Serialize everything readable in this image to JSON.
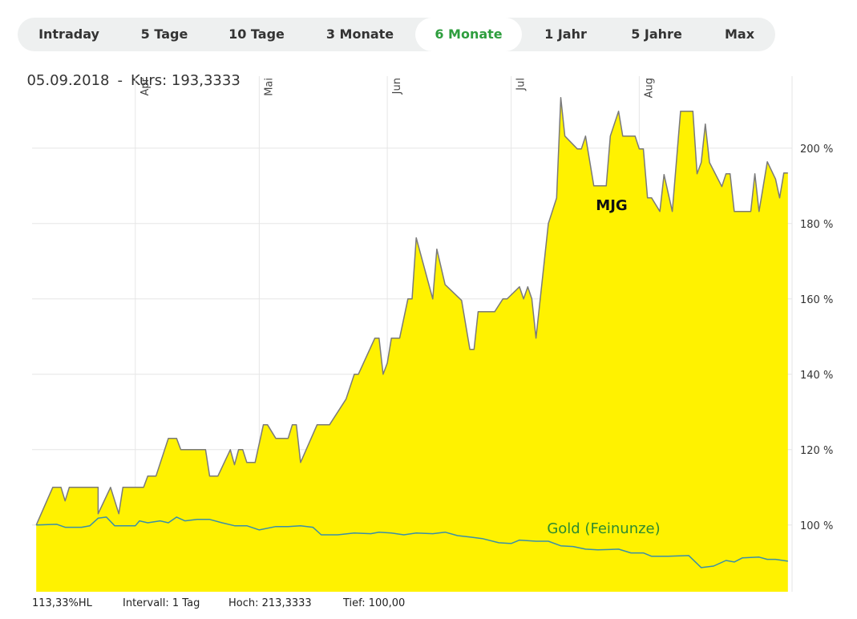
{
  "tabs": {
    "items": [
      "Intraday",
      "5 Tage",
      "10 Tage",
      "3 Monate",
      "6 Monate",
      "1 Jahr",
      "5 Jahre",
      "Max"
    ],
    "active": 4
  },
  "info": {
    "date": "05.09.2018",
    "separator": "-",
    "price": "Kurs: 193,3333"
  },
  "footer": [
    "113,33%HL",
    "Intervall: 1 Tag",
    "Hoch: 213,3333",
    "Tief: 100,00"
  ],
  "chart_data": {
    "type": "area",
    "xlim": [
      66,
      250
    ],
    "xticks": [
      {
        "value": 91,
        "label": "Apr"
      },
      {
        "value": 121,
        "label": "Mai"
      },
      {
        "value": 152,
        "label": "Jun"
      },
      {
        "value": 182,
        "label": "Jul"
      },
      {
        "value": 213,
        "label": "Aug"
      }
    ],
    "ylim": [
      82.3,
      219.1
    ],
    "yticks": [
      {
        "value": 100,
        "label": "100 %"
      },
      {
        "value": 120,
        "label": "120 %"
      },
      {
        "value": 140,
        "label": "140 %"
      },
      {
        "value": 160,
        "label": "160 %"
      },
      {
        "value": 180,
        "label": "180 %"
      },
      {
        "value": 200,
        "label": "200 %"
      }
    ],
    "grid": true,
    "series": [
      {
        "name": "MJG",
        "color": "#fff200",
        "line_color": "#7a7a7a",
        "label_color": "#111111",
        "filled": true,
        "x": [
          67,
          71,
          73,
          74,
          75,
          82,
          82,
          85,
          87,
          88,
          93,
          94,
          96,
          99,
          101,
          102,
          108,
          109,
          111,
          114,
          115,
          116,
          117,
          118,
          120,
          122,
          123,
          125,
          128,
          129,
          130,
          131,
          135,
          138,
          142,
          144,
          145,
          149,
          150,
          151,
          152,
          153,
          155,
          157,
          158,
          159,
          163,
          164,
          166,
          170,
          172,
          173,
          174,
          178,
          180,
          181,
          184,
          185,
          186,
          187,
          188,
          191,
          193,
          194,
          195,
          198,
          199,
          200,
          202,
          205,
          206,
          208,
          209,
          212,
          213,
          214,
          215,
          216,
          218,
          219,
          221,
          223,
          226,
          227,
          228,
          229,
          230,
          233,
          234,
          235,
          236,
          240,
          241,
          242,
          244,
          246,
          247,
          248,
          249
        ],
        "values": [
          100,
          110,
          110,
          106.4,
          110,
          110,
          103,
          110,
          103,
          110,
          110,
          113,
          113,
          123,
          123,
          120,
          120,
          113,
          113,
          120,
          116,
          120,
          120,
          116.6,
          116.6,
          126.6,
          126.6,
          123,
          123,
          126.6,
          126.6,
          116.6,
          126.6,
          126.6,
          133.4,
          140,
          140,
          149.6,
          149.6,
          140,
          143,
          149.6,
          149.6,
          160,
          160,
          176.2,
          160,
          173.2,
          163.8,
          159.6,
          146.6,
          146.6,
          156.6,
          156.6,
          160,
          160,
          163.2,
          160,
          163.2,
          160,
          149.6,
          180,
          186.8,
          213.4,
          203.2,
          199.8,
          199.8,
          203.2,
          190,
          190,
          203.2,
          209.8,
          203.2,
          203.2,
          199.8,
          199.8,
          186.8,
          186.8,
          183.2,
          193,
          183.2,
          209.8,
          209.8,
          193.2,
          196.2,
          206.4,
          196.2,
          189.8,
          193.2,
          193.2,
          183.2,
          183.2,
          193.2,
          183.2,
          196.4,
          191.8,
          186.8,
          193.4,
          193.4
        ]
      },
      {
        "name": "Gold (Feinunze)",
        "color": "#3a8fa8",
        "line_color": "#3a8fa8",
        "label_color": "#2e8b2e",
        "filled": false,
        "x": [
          67,
          72,
          74,
          78,
          80,
          82,
          84,
          86,
          91,
          92,
          94,
          97,
          99,
          101,
          103,
          106,
          109,
          112,
          115,
          118,
          121,
          125,
          128,
          131,
          134,
          136,
          140,
          144,
          148,
          150,
          153,
          156,
          159,
          163,
          166,
          169,
          172,
          175,
          179,
          182,
          184,
          188,
          191,
          194,
          197,
          200,
          203,
          208,
          211,
          214,
          216,
          220,
          225,
          228,
          231,
          234,
          236,
          238,
          242,
          244,
          246,
          249
        ],
        "values": [
          100,
          100.2,
          99.4,
          99.4,
          99.8,
          101.8,
          102.1,
          99.8,
          99.8,
          101.1,
          100.6,
          101.1,
          100.6,
          102.1,
          101.1,
          101.5,
          101.5,
          100.6,
          99.8,
          99.8,
          98.7,
          99.6,
          99.6,
          99.8,
          99.4,
          97.4,
          97.4,
          97.9,
          97.7,
          98.1,
          97.9,
          97.4,
          97.9,
          97.7,
          98.1,
          97.2,
          96.8,
          96.4,
          95.3,
          95.1,
          96,
          95.7,
          95.7,
          94.5,
          94.3,
          93.6,
          93.4,
          93.6,
          92.6,
          92.6,
          91.7,
          91.7,
          91.9,
          88.7,
          89.1,
          90.6,
          90.2,
          91.3,
          91.5,
          90.9,
          90.9,
          90.4
        ]
      }
    ]
  }
}
